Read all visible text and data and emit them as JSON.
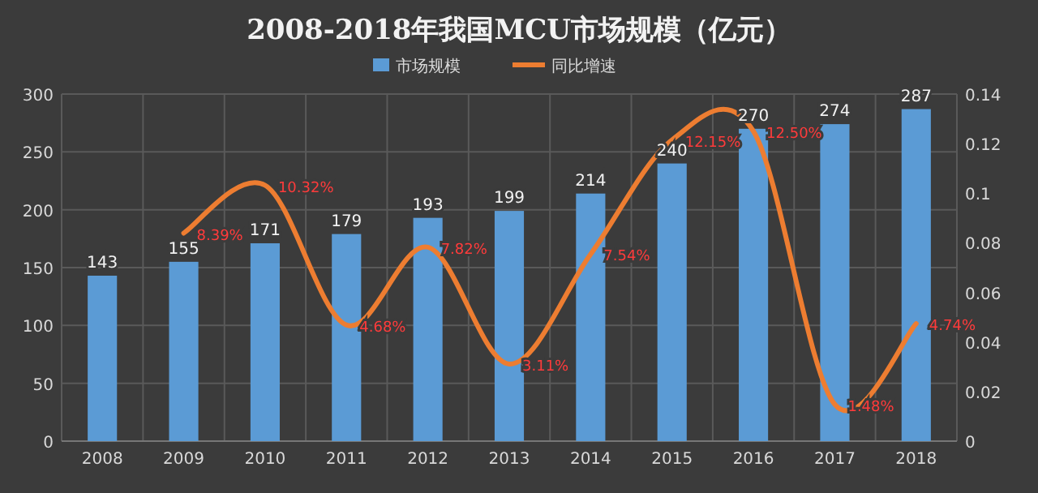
{
  "chart_data": {
    "type": "bar",
    "title": "2008-2018年我国MCU市场规模（亿元）",
    "categories": [
      "2008",
      "2009",
      "2010",
      "2011",
      "2012",
      "2013",
      "2014",
      "2015",
      "2016",
      "2017",
      "2018"
    ],
    "series": [
      {
        "name": "市场规模",
        "color": "#5b9bd5",
        "values": [
          143,
          155,
          171,
          179,
          193,
          199,
          214,
          240,
          270,
          274,
          287
        ],
        "value_labels": [
          "143",
          "155",
          "171",
          "179",
          "193",
          "199",
          "214",
          "240",
          "270",
          "274",
          "287"
        ]
      },
      {
        "name": "同比增速",
        "type": "line",
        "axis": "y2",
        "color": "#ed7d31",
        "values": [
          null,
          0.0839,
          0.1032,
          0.0468,
          0.0782,
          0.0311,
          0.0754,
          0.1215,
          0.125,
          0.0148,
          0.0474
        ],
        "value_labels": [
          null,
          "8.39%",
          "10.32%",
          "4.68%",
          "7.82%",
          "3.11%",
          "7.54%",
          "12.15%",
          "12.50%",
          "1.48%",
          "4.74%"
        ]
      }
    ],
    "ylim": [
      0,
      300
    ],
    "yticks": [
      0,
      50,
      100,
      150,
      200,
      250,
      300
    ],
    "y2lim": [
      0,
      0.14
    ],
    "y2ticks": [
      0,
      0.02,
      0.04,
      0.06,
      0.08,
      0.1,
      0.12,
      0.14
    ],
    "grid": true,
    "legend": "top"
  }
}
